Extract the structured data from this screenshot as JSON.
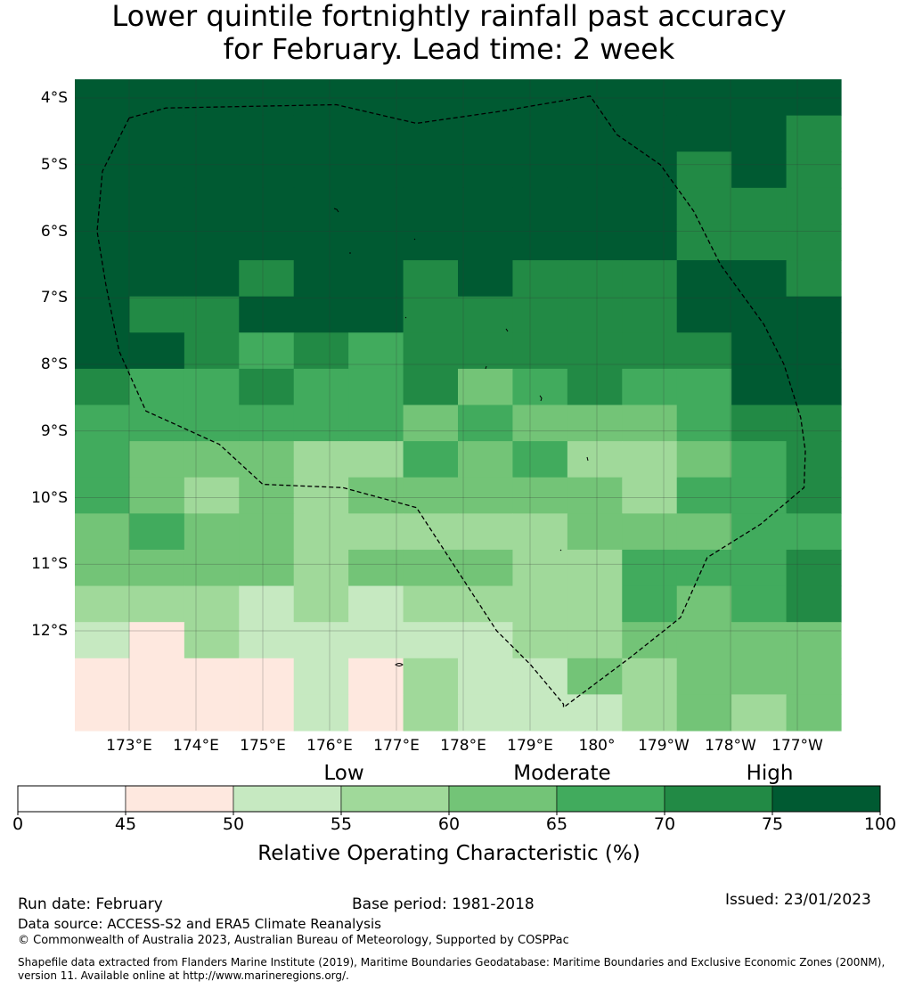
{
  "title": {
    "line1": "Lower quintile fortnightly rainfall past accuracy",
    "line2": "for February. Lead time: 2 week"
  },
  "map": {
    "lat_labels": [
      "4°S",
      "5°S",
      "6°S",
      "7°S",
      "8°S",
      "9°S",
      "10°S",
      "11°S",
      "12°S"
    ],
    "lon_labels": [
      "173°E",
      "174°E",
      "175°E",
      "176°E",
      "177°E",
      "178°E",
      "179°E",
      "180°",
      "179°W",
      "178°W",
      "177°W"
    ],
    "grid_values": [
      [
        77,
        77,
        77,
        77,
        77,
        77,
        77,
        77,
        77,
        77,
        77,
        77,
        77,
        77
      ],
      [
        77,
        77,
        77,
        77,
        77,
        77,
        77,
        77,
        77,
        77,
        77,
        77,
        77,
        72
      ],
      [
        77,
        77,
        77,
        77,
        77,
        77,
        77,
        77,
        77,
        77,
        77,
        72,
        77,
        72
      ],
      [
        77,
        77,
        77,
        77,
        77,
        77,
        77,
        77,
        77,
        77,
        77,
        72,
        72,
        72
      ],
      [
        77,
        77,
        77,
        77,
        77,
        77,
        77,
        77,
        77,
        77,
        77,
        72,
        72,
        72
      ],
      [
        77,
        77,
        77,
        72,
        77,
        77,
        72,
        77,
        72,
        72,
        72,
        77,
        77,
        72
      ],
      [
        77,
        72,
        72,
        77,
        77,
        77,
        72,
        72,
        72,
        72,
        72,
        77,
        77,
        77
      ],
      [
        77,
        77,
        72,
        67,
        72,
        67,
        72,
        72,
        72,
        72,
        72,
        72,
        77,
        77
      ],
      [
        72,
        67,
        67,
        72,
        67,
        67,
        72,
        62,
        67,
        72,
        67,
        67,
        77,
        77
      ],
      [
        67,
        67,
        67,
        67,
        67,
        67,
        62,
        67,
        62,
        62,
        62,
        67,
        72,
        72
      ],
      [
        67,
        62,
        62,
        62,
        57,
        57,
        67,
        62,
        67,
        57,
        57,
        62,
        67,
        72
      ],
      [
        67,
        62,
        57,
        62,
        57,
        62,
        62,
        62,
        62,
        62,
        57,
        67,
        67,
        72
      ],
      [
        62,
        67,
        62,
        62,
        57,
        57,
        57,
        57,
        57,
        62,
        62,
        62,
        67,
        67
      ],
      [
        62,
        62,
        62,
        62,
        57,
        62,
        62,
        62,
        57,
        57,
        67,
        67,
        67,
        72
      ],
      [
        57,
        57,
        57,
        52,
        57,
        52,
        57,
        57,
        57,
        57,
        67,
        62,
        67,
        72
      ],
      [
        52,
        47,
        57,
        52,
        52,
        52,
        52,
        52,
        57,
        57,
        62,
        62,
        62,
        62
      ],
      [
        47,
        47,
        47,
        47,
        52,
        47,
        57,
        52,
        52,
        62,
        57,
        62,
        62,
        62
      ],
      [
        47,
        47,
        47,
        47,
        52,
        47,
        57,
        52,
        52,
        52,
        57,
        62,
        57,
        62
      ]
    ],
    "boundary_lonlat": [
      [
        173.0,
        -4.3
      ],
      [
        173.55,
        -4.15
      ],
      [
        176.1,
        -4.1
      ],
      [
        177.3,
        -4.38
      ],
      [
        178.55,
        -4.2
      ],
      [
        179.9,
        -3.97
      ],
      [
        -179.7,
        -4.55
      ],
      [
        -179.05,
        -5.0
      ],
      [
        -178.55,
        -5.7
      ],
      [
        -178.15,
        -6.5
      ],
      [
        -177.5,
        -7.4
      ],
      [
        -177.2,
        -8.0
      ],
      [
        -176.95,
        -8.8
      ],
      [
        -176.88,
        -9.3
      ],
      [
        -176.9,
        -9.85
      ],
      [
        -177.55,
        -10.4
      ],
      [
        -178.35,
        -10.9
      ],
      [
        -178.75,
        -11.8
      ],
      [
        -179.5,
        -12.4
      ],
      [
        -180.5,
        -13.15
      ],
      [
        179.5,
        -13.1
      ],
      [
        179.0,
        -12.5
      ],
      [
        178.5,
        -12.0
      ],
      [
        177.3,
        -10.15
      ],
      [
        176.2,
        -9.85
      ],
      [
        175.0,
        -9.8
      ],
      [
        174.35,
        -9.2
      ],
      [
        173.25,
        -8.7
      ],
      [
        172.85,
        -7.8
      ],
      [
        172.65,
        -6.8
      ],
      [
        172.52,
        -6.0
      ],
      [
        172.6,
        -5.1
      ],
      [
        173.0,
        -4.3
      ]
    ]
  },
  "colorbar": {
    "categories": [
      "Low",
      "Moderate",
      "High"
    ],
    "ticks": [
      "0",
      "45",
      "50",
      "55",
      "60",
      "65",
      "70",
      "75",
      "100"
    ],
    "colors": [
      "#ffffff",
      "#fee8df",
      "#c6e9c1",
      "#a0d99a",
      "#73c477",
      "#41ab5d",
      "#228a45",
      "#005a32"
    ],
    "label": "Relative Operating Characteristic (%)"
  },
  "footer": {
    "run_date": "Run date: February",
    "base_period": "Base period: 1981-2018",
    "issued": "Issued: 23/01/2023",
    "data_source": "Data source: ACCESS-S2 and ERA5 Climate Reanalysis",
    "copyright": "© Commonwealth of Australia 2023, Australian Bureau of Meteorology, Supported by COSPPac",
    "shapefile_line1": "Shapefile data extracted from Flanders Marine Institute (2019), Maritime Boundaries Geodatabase: Maritime Boundaries and Exclusive Economic Zones (200NM),",
    "shapefile_line2": "version 11. Available online at http://www.marineregions.org/."
  }
}
